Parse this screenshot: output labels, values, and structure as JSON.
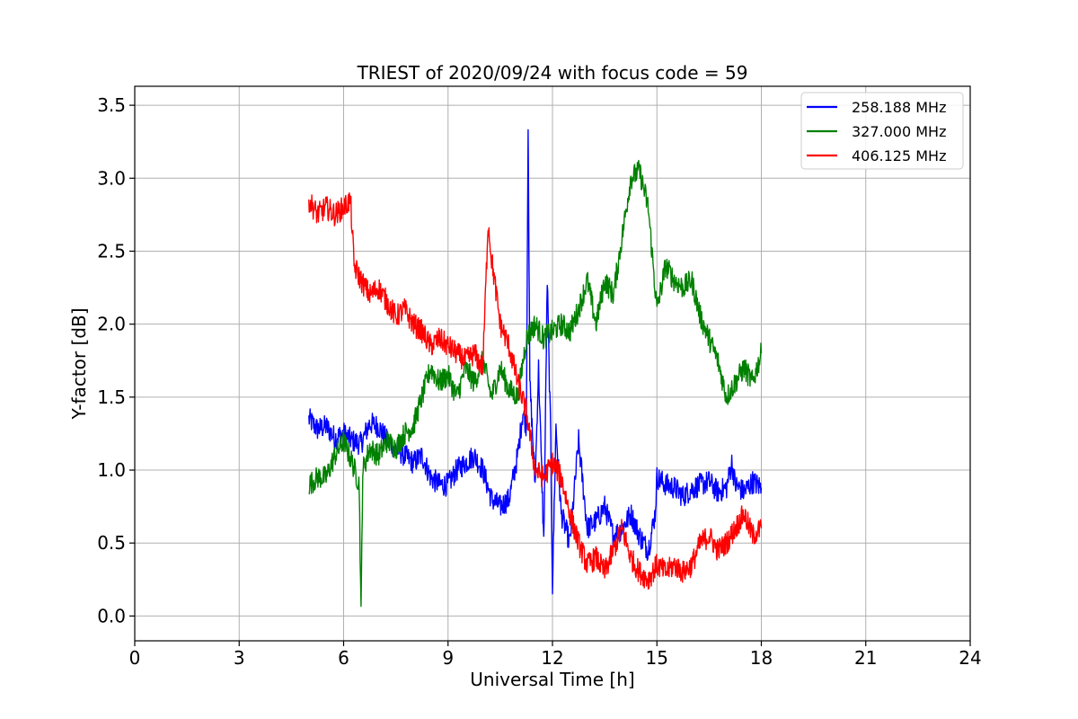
{
  "chart_data": {
    "type": "line",
    "title": "TRIEST of 2020/09/24 with focus code = 59",
    "xlabel": "Universal Time [h]",
    "ylabel": "Y-factor [dB]",
    "xlim": [
      0,
      24
    ],
    "ylim": [
      -0.17,
      3.63
    ],
    "xticks": [
      0,
      3,
      6,
      9,
      12,
      15,
      18,
      21,
      24
    ],
    "yticks": [
      0.0,
      0.5,
      1.0,
      1.5,
      2.0,
      2.5,
      3.0,
      3.5
    ],
    "xtick_labels": [
      "0",
      "3",
      "6",
      "9",
      "12",
      "15",
      "18",
      "21",
      "24"
    ],
    "ytick_labels": [
      "0.0",
      "0.5",
      "1.0",
      "1.5",
      "2.0",
      "2.5",
      "3.0",
      "3.5"
    ],
    "grid": true,
    "legend_position": "top-right",
    "series": [
      {
        "name": "258.188 MHz",
        "color": "#0000ff",
        "x": [
          5.0,
          5.25,
          5.5,
          5.75,
          6.0,
          6.25,
          6.5,
          6.75,
          7.0,
          7.25,
          7.5,
          7.75,
          8.0,
          8.25,
          8.5,
          8.75,
          9.0,
          9.25,
          9.5,
          9.75,
          10.0,
          10.25,
          10.5,
          10.75,
          11.0,
          11.15,
          11.25,
          11.3,
          11.35,
          11.5,
          11.6,
          11.75,
          11.85,
          11.95,
          12.0,
          12.1,
          12.25,
          12.5,
          12.75,
          13.0,
          13.25,
          13.5,
          13.75,
          14.0,
          14.25,
          14.5,
          14.75,
          14.95,
          15.0,
          15.25,
          15.5,
          15.75,
          16.0,
          16.25,
          16.5,
          16.75,
          17.0,
          17.15,
          17.25,
          17.5,
          17.75,
          18.0
        ],
        "y": [
          1.35,
          1.28,
          1.3,
          1.22,
          1.25,
          1.2,
          1.18,
          1.32,
          1.3,
          1.2,
          1.15,
          1.1,
          1.05,
          1.1,
          0.95,
          0.9,
          0.9,
          1.0,
          1.05,
          1.1,
          1.0,
          0.8,
          0.75,
          0.8,
          1.1,
          1.4,
          1.3,
          3.4,
          1.6,
          0.9,
          1.7,
          0.5,
          2.3,
          1.2,
          0.2,
          1.3,
          0.7,
          0.5,
          1.2,
          0.6,
          0.65,
          0.75,
          0.55,
          0.6,
          0.7,
          0.55,
          0.45,
          0.7,
          0.95,
          0.9,
          0.88,
          0.82,
          0.87,
          0.9,
          0.92,
          0.85,
          0.88,
          1.05,
          0.9,
          0.85,
          0.92,
          0.88
        ]
      },
      {
        "name": "327.000 MHz",
        "color": "#008000",
        "x": [
          5.0,
          5.25,
          5.5,
          5.75,
          6.0,
          6.25,
          6.45,
          6.5,
          6.55,
          6.75,
          7.0,
          7.25,
          7.5,
          7.75,
          8.0,
          8.25,
          8.5,
          8.75,
          9.0,
          9.25,
          9.5,
          9.75,
          10.0,
          10.25,
          10.5,
          10.75,
          11.0,
          11.25,
          11.5,
          11.75,
          12.0,
          12.25,
          12.5,
          12.75,
          13.0,
          13.25,
          13.5,
          13.75,
          14.0,
          14.25,
          14.5,
          14.75,
          15.0,
          15.25,
          15.5,
          15.75,
          16.0,
          16.25,
          16.5,
          16.75,
          17.0,
          17.25,
          17.5,
          17.75,
          18.0
        ],
        "y": [
          0.9,
          0.95,
          0.95,
          1.1,
          1.2,
          1.05,
          0.9,
          0.0,
          1.0,
          1.15,
          1.1,
          1.2,
          1.15,
          1.25,
          1.3,
          1.5,
          1.7,
          1.6,
          1.65,
          1.5,
          1.7,
          1.6,
          1.75,
          1.5,
          1.7,
          1.55,
          1.5,
          1.9,
          2.0,
          1.9,
          1.95,
          2.0,
          1.95,
          2.1,
          2.3,
          2.0,
          2.3,
          2.2,
          2.6,
          3.0,
          3.05,
          2.8,
          2.1,
          2.4,
          2.3,
          2.25,
          2.3,
          2.05,
          1.9,
          1.75,
          1.5,
          1.6,
          1.7,
          1.6,
          1.8
        ]
      },
      {
        "name": "406.125 MHz",
        "color": "#ff0000",
        "x": [
          5.0,
          5.25,
          5.5,
          5.75,
          6.0,
          6.2,
          6.3,
          6.5,
          6.75,
          7.0,
          7.25,
          7.5,
          7.75,
          8.0,
          8.25,
          8.5,
          8.75,
          9.0,
          9.25,
          9.5,
          9.75,
          10.0,
          10.15,
          10.25,
          10.5,
          10.75,
          11.0,
          11.25,
          11.5,
          11.75,
          12.0,
          12.25,
          12.5,
          12.75,
          13.0,
          13.25,
          13.5,
          13.75,
          14.0,
          14.25,
          14.5,
          14.75,
          15.0,
          15.25,
          15.5,
          15.75,
          16.0,
          16.25,
          16.5,
          16.75,
          17.0,
          17.25,
          17.5,
          17.75,
          18.0
        ],
        "y": [
          2.85,
          2.75,
          2.8,
          2.75,
          2.8,
          2.85,
          2.4,
          2.3,
          2.2,
          2.25,
          2.15,
          2.05,
          2.1,
          2.0,
          1.95,
          1.85,
          1.9,
          1.85,
          1.8,
          1.75,
          1.8,
          1.7,
          2.7,
          2.45,
          2.0,
          1.85,
          1.6,
          1.4,
          1.0,
          0.95,
          1.05,
          0.95,
          0.7,
          0.5,
          0.35,
          0.4,
          0.3,
          0.45,
          0.6,
          0.4,
          0.3,
          0.25,
          0.35,
          0.3,
          0.35,
          0.3,
          0.35,
          0.5,
          0.55,
          0.45,
          0.5,
          0.6,
          0.7,
          0.55,
          0.6
        ]
      }
    ]
  }
}
